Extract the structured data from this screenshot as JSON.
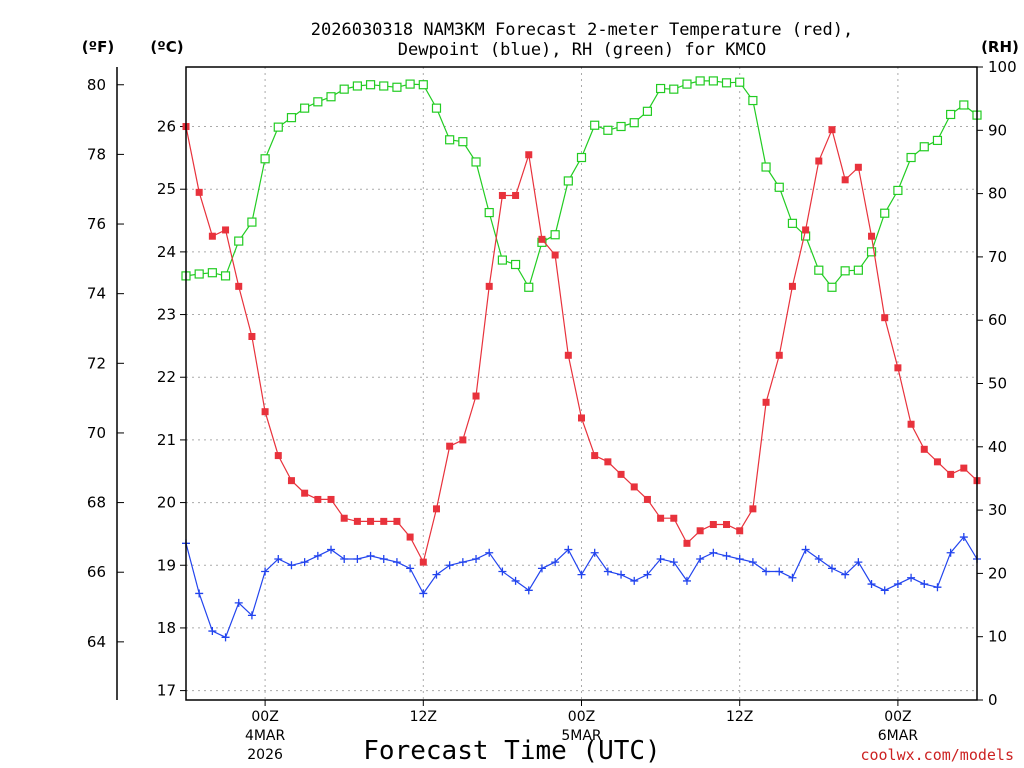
{
  "chart_data": {
    "type": "line",
    "title_line1": "2026030318 NAM3KM Forecast 2-meter Temperature (red),",
    "title_line2": "Dewpoint (blue), RH (green) for KMCO",
    "unit_f": "(ºF)",
    "unit_c": "(ºC)",
    "unit_rh": "(RH)",
    "xlabel": "Forecast Time (UTC)",
    "credit": "coolwx.com/models",
    "forecast_hours": [
      0,
      60
    ],
    "ylim_c": [
      16.85,
      26.95
    ],
    "ylim_f": [
      62.33,
      80.51
    ],
    "ylim_rh": [
      0,
      100
    ],
    "yticks_c": [
      "17",
      "18",
      "19",
      "20",
      "21",
      "22",
      "23",
      "24",
      "25",
      "26"
    ],
    "yticks_f": [
      "64",
      "66",
      "68",
      "70",
      "72",
      "74",
      "76",
      "78",
      "80"
    ],
    "yticks_rh": [
      "0",
      "10",
      "20",
      "30",
      "40",
      "50",
      "60",
      "70",
      "80",
      "90",
      "100"
    ],
    "xticks": [
      {
        "hour": 6,
        "label": "00Z",
        "sub1": "4MAR",
        "sub2": "2026"
      },
      {
        "hour": 18,
        "label": "12Z",
        "sub1": "",
        "sub2": ""
      },
      {
        "hour": 30,
        "label": "00Z",
        "sub1": "5MAR",
        "sub2": ""
      },
      {
        "hour": 42,
        "label": "12Z",
        "sub1": "",
        "sub2": ""
      },
      {
        "hour": 54,
        "label": "00Z",
        "sub1": "6MAR",
        "sub2": ""
      }
    ],
    "series": [
      {
        "name": "2-meter Temperature",
        "axis": "c",
        "color": "#e8323c",
        "marker": "filled-square",
        "values": [
          26.0,
          24.95,
          24.25,
          24.35,
          23.45,
          22.65,
          21.45,
          20.75,
          20.35,
          20.15,
          20.05,
          20.05,
          19.75,
          19.7,
          19.7,
          19.7,
          19.7,
          19.45,
          19.05,
          19.9,
          20.9,
          21.0,
          21.7,
          23.45,
          24.9,
          24.9,
          25.55,
          24.2,
          23.95,
          22.35,
          21.35,
          20.75,
          20.65,
          20.45,
          20.25,
          20.05,
          19.75,
          19.75,
          19.35,
          19.55,
          19.65,
          19.65,
          19.55,
          19.9,
          21.6,
          22.35,
          23.45,
          24.35,
          25.45,
          25.95,
          25.15,
          25.35,
          24.25,
          22.95,
          22.15,
          21.25,
          20.85,
          20.65,
          20.45,
          20.55,
          20.35
        ]
      },
      {
        "name": "Dewpoint",
        "axis": "c",
        "color": "#2244ee",
        "marker": "plus",
        "values": [
          19.35,
          18.55,
          17.95,
          17.85,
          18.4,
          18.2,
          18.9,
          19.1,
          19.0,
          19.05,
          19.15,
          19.25,
          19.1,
          19.1,
          19.15,
          19.1,
          19.05,
          18.95,
          18.55,
          18.85,
          19.0,
          19.05,
          19.1,
          19.2,
          18.9,
          18.75,
          18.6,
          18.95,
          19.05,
          19.25,
          18.85,
          19.2,
          18.9,
          18.85,
          18.75,
          18.85,
          19.1,
          19.05,
          18.75,
          19.1,
          19.2,
          19.15,
          19.1,
          19.05,
          18.9,
          18.9,
          18.8,
          19.25,
          19.1,
          18.95,
          18.85,
          19.05,
          18.7,
          18.6,
          18.7,
          18.8,
          18.7,
          18.65,
          19.2,
          19.45,
          19.1
        ]
      },
      {
        "name": "RH",
        "axis": "rh",
        "color": "#22cc22",
        "marker": "open-square",
        "values": [
          67,
          67.3,
          67.5,
          67,
          72.5,
          75.5,
          85.5,
          90.5,
          92,
          93.5,
          94.5,
          95.3,
          96.5,
          97,
          97.2,
          97,
          96.8,
          97.3,
          97.2,
          93.5,
          88.5,
          88.2,
          85,
          77,
          69.5,
          68.8,
          65.2,
          72.3,
          73.5,
          82,
          85.7,
          90.8,
          90,
          90.6,
          91.2,
          93,
          96.6,
          96.5,
          97.3,
          97.8,
          97.8,
          97.5,
          97.6,
          94.7,
          84.2,
          81,
          75.3,
          73.3,
          67.9,
          65.2,
          67.8,
          67.9,
          70.8,
          76.9,
          80.5,
          85.7,
          87.4,
          88.4,
          92.5,
          94.0,
          92.4
        ]
      }
    ]
  }
}
